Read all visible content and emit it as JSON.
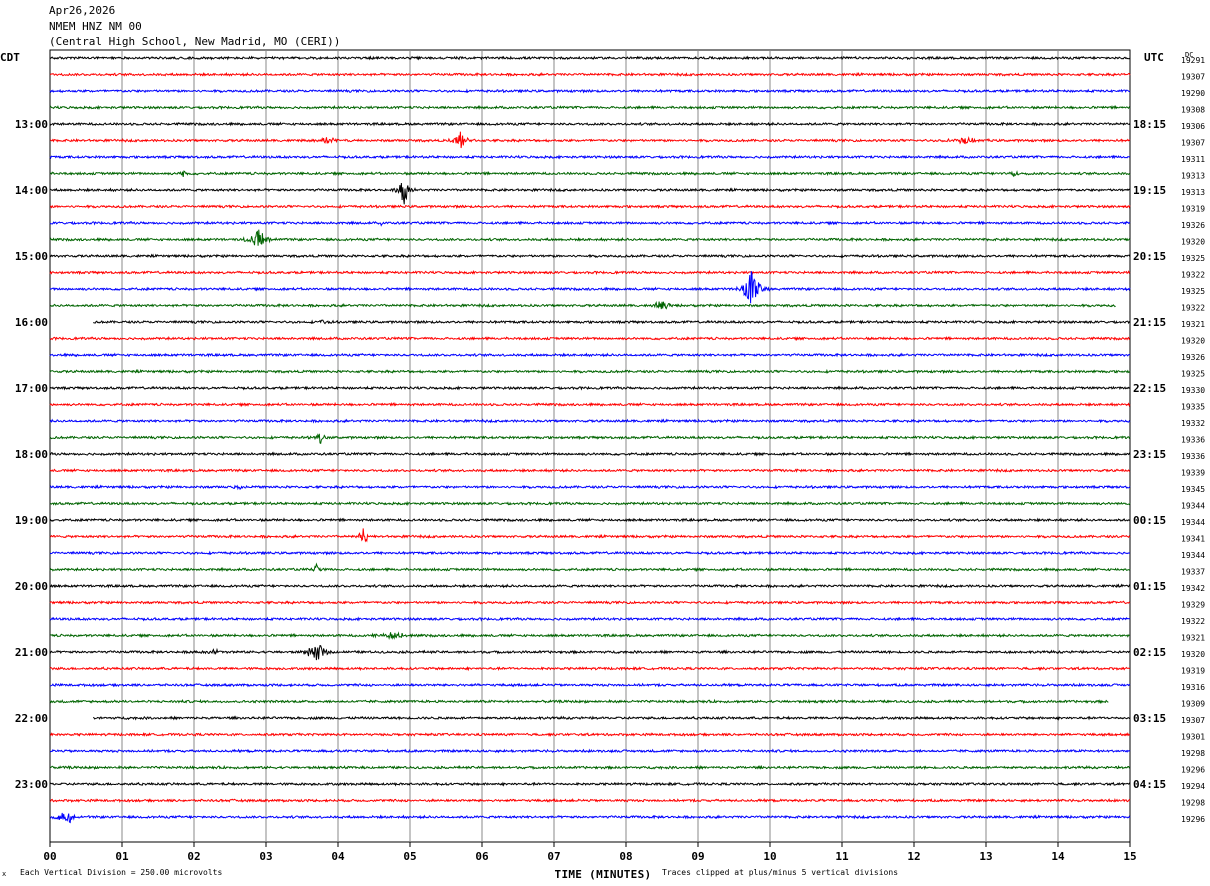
{
  "header": {
    "date": "Apr26,2026",
    "station": "NMEM HNZ NM 00",
    "location": "(Central High School, New Madrid, MO (CERI))"
  },
  "left_axis_label": "CDT",
  "right_axis_label": "UTC",
  "dc_label": "DC",
  "x_axis_title": "TIME (MINUTES)",
  "footer": {
    "scale_note": "Each Vertical Division =  250.00 microvolts",
    "clip_note": "Traces clipped at plus/minus 5 vertical divisions",
    "mark": "x"
  },
  "chart_data": {
    "type": "line",
    "title": "NMEM HNZ NM 00",
    "xlabel": "TIME (MINUTES)",
    "xlim": [
      0,
      15
    ],
    "x_ticks": [
      "00",
      "01",
      "02",
      "03",
      "04",
      "05",
      "06",
      "07",
      "08",
      "09",
      "10",
      "11",
      "12",
      "13",
      "14",
      "15"
    ],
    "rows_per_hour": 4,
    "trace_colors": [
      "#000000",
      "#ff0000",
      "#0000ff",
      "#006400"
    ],
    "left_times": [
      "13:00",
      "14:00",
      "15:00",
      "16:00",
      "17:00",
      "18:00",
      "19:00",
      "20:00",
      "21:00",
      "22:00",
      "23:00"
    ],
    "right_times": [
      "18:15",
      "19:15",
      "20:15",
      "21:15",
      "22:15",
      "23:15",
      "00:15",
      "01:15",
      "02:15",
      "03:15",
      "04:15"
    ],
    "dc_offsets": [
      19291,
      19307,
      19290,
      19308,
      19306,
      19307,
      19311,
      19313,
      19313,
      19319,
      19326,
      19320,
      19325,
      19322,
      19325,
      19322,
      19321,
      19320,
      19326,
      19325,
      19330,
      19335,
      19332,
      19336,
      19336,
      19339,
      19345,
      19344,
      19344,
      19341,
      19344,
      19337,
      19342,
      19329,
      19322,
      19321,
      19320,
      19319,
      19316,
      19309,
      19307,
      19301,
      19298,
      19296,
      19294,
      19298,
      19296
    ],
    "trace_starts": {
      "16": 0.6,
      "40": 0.6
    },
    "trace_ends": {
      "15": 14.8,
      "39": 14.7
    },
    "events": [
      {
        "row": 5,
        "minute": 3.85,
        "amp": 0.35,
        "dur": 0.35
      },
      {
        "row": 5,
        "minute": 5.7,
        "amp": 1.1,
        "dur": 0.2
      },
      {
        "row": 5,
        "minute": 12.7,
        "amp": 0.35,
        "dur": 0.35
      },
      {
        "row": 7,
        "minute": 1.85,
        "amp": 0.6,
        "dur": 0.1
      },
      {
        "row": 7,
        "minute": 13.4,
        "amp": 0.3,
        "dur": 0.2
      },
      {
        "row": 8,
        "minute": 4.92,
        "amp": 1.8,
        "dur": 0.15
      },
      {
        "row": 10,
        "minute": 4.6,
        "amp": 0.3,
        "dur": 0.08
      },
      {
        "row": 11,
        "minute": 2.9,
        "amp": 1.2,
        "dur": 0.25
      },
      {
        "row": 14,
        "minute": 9.75,
        "amp": 2.4,
        "dur": 0.25
      },
      {
        "row": 15,
        "minute": 8.5,
        "amp": 0.7,
        "dur": 0.2
      },
      {
        "row": 16,
        "minute": 3.8,
        "amp": 0.3,
        "dur": 0.15
      },
      {
        "row": 23,
        "minute": 3.75,
        "amp": 0.7,
        "dur": 0.15
      },
      {
        "row": 26,
        "minute": 2.65,
        "amp": 0.25,
        "dur": 0.15
      },
      {
        "row": 29,
        "minute": 4.35,
        "amp": 1.1,
        "dur": 0.15
      },
      {
        "row": 31,
        "minute": 3.7,
        "amp": 0.6,
        "dur": 0.12
      },
      {
        "row": 35,
        "minute": 4.75,
        "amp": 0.5,
        "dur": 0.4
      },
      {
        "row": 36,
        "minute": 2.3,
        "amp": 0.25,
        "dur": 0.3
      },
      {
        "row": 36,
        "minute": 3.7,
        "amp": 1.2,
        "dur": 0.25
      },
      {
        "row": 46,
        "minute": 0.25,
        "amp": 0.8,
        "dur": 0.3
      }
    ]
  }
}
